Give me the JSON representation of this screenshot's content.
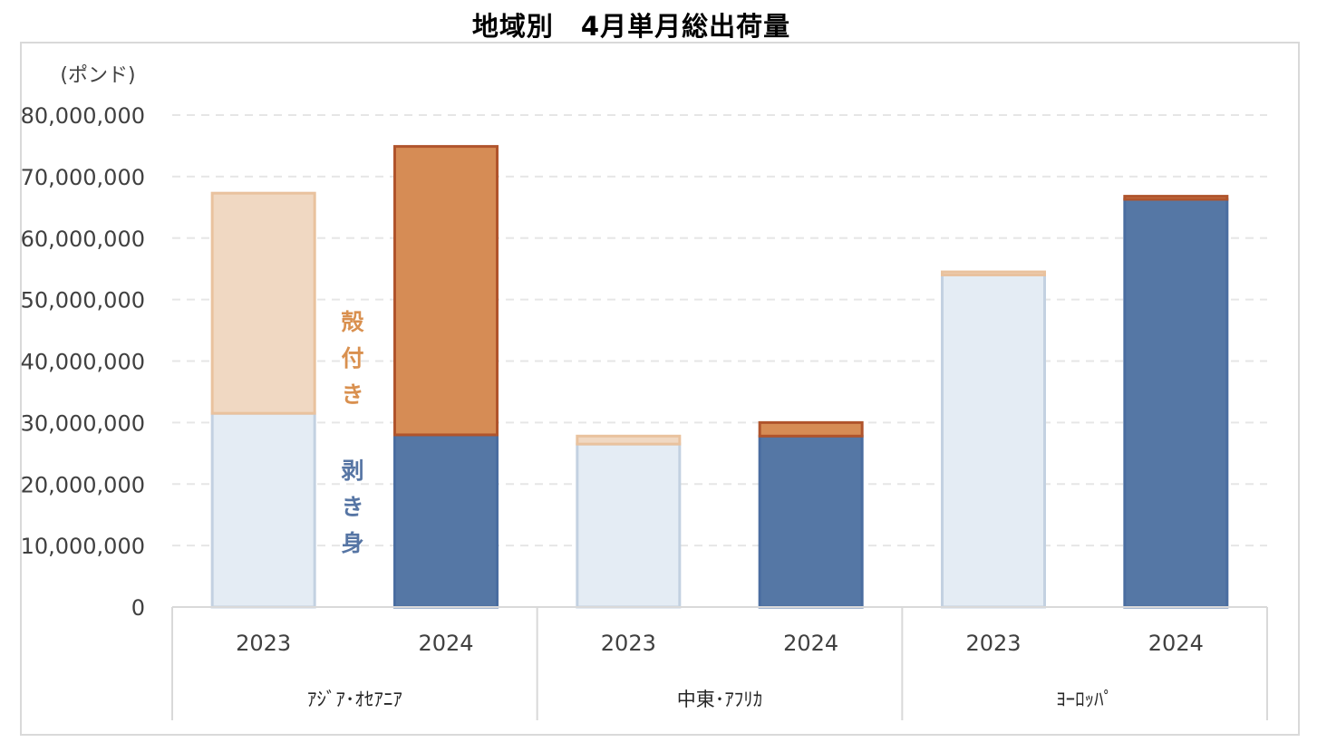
{
  "chart_data": {
    "type": "bar",
    "stacked": true,
    "title": "地域別　4月単月総出荷量",
    "unit_label": "(ポンド)",
    "ylim": [
      0,
      80000000
    ],
    "yticks": [
      0,
      10000000,
      20000000,
      30000000,
      40000000,
      50000000,
      60000000,
      70000000,
      80000000
    ],
    "ytick_labels": [
      "0",
      "10,000,000",
      "20,000,000",
      "30,000,000",
      "40,000,000",
      "50,000,000",
      "60,000,000",
      "70,000,000",
      "80,000,000"
    ],
    "grid": true,
    "groups": [
      {
        "name": "ｱｼﾞｱ･ｵｾｱﾆｱ",
        "categories": [
          "2023",
          "2024"
        ]
      },
      {
        "name": "中東･ｱﾌﾘｶ",
        "categories": [
          "2023",
          "2024"
        ]
      },
      {
        "name": "ﾖｰﾛｯﾊﾟ",
        "categories": [
          "2023",
          "2024"
        ]
      }
    ],
    "categories": [
      "2023",
      "2024",
      "2023",
      "2024",
      "2023",
      "2024"
    ],
    "series": [
      {
        "name": "剥き身",
        "values": [
          31500000,
          28000000,
          26500000,
          27800000,
          54000000,
          66300000
        ]
      },
      {
        "name": "殻付き",
        "values": [
          35800000,
          46900000,
          1300000,
          2200000,
          500000,
          500000
        ]
      }
    ],
    "inline_labels": {
      "shell": [
        "殻",
        "付",
        "き"
      ],
      "shelled": [
        "剥",
        "き",
        "身"
      ]
    },
    "colors": {
      "shelled_2023": "#e4ecf4",
      "shelled_2023_border": "#c3d1e1",
      "shelled_2024": "#5577a5",
      "shelled_2024_border": "#4a6da0",
      "shell_2023": "#f0d8c2",
      "shell_2023_border": "#e9c29e",
      "shell_2024": "#d68c55",
      "shell_2024_border": "#b0542c",
      "label_shell": "#d9904f",
      "label_shelled": "#5675a4",
      "grid": "#e6e6e6",
      "axis": "#d9d9d9",
      "text": "#404040"
    }
  }
}
